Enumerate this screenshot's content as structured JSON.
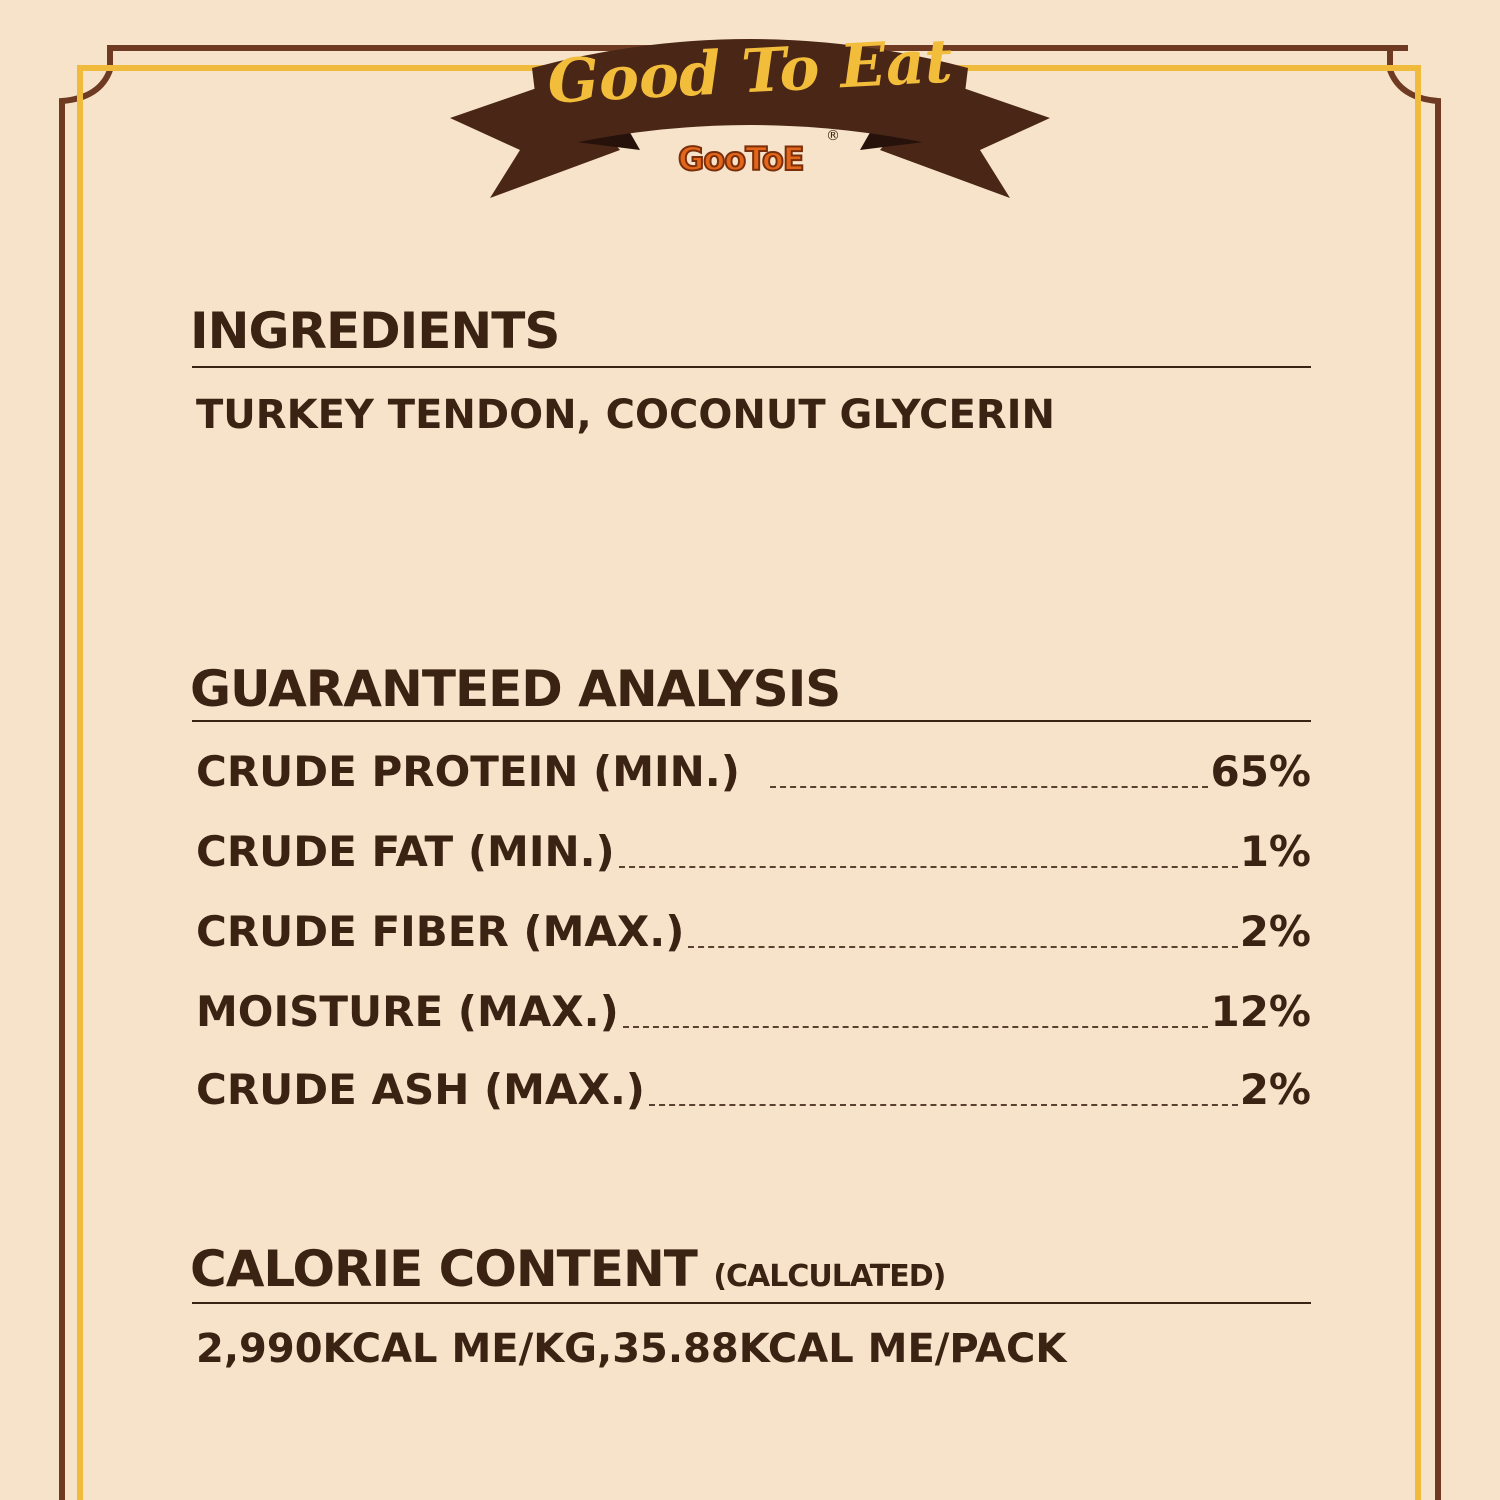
{
  "logo": {
    "title": "Good To Eat",
    "brand": "GooToE",
    "registered": "®"
  },
  "colors": {
    "background": "#f6e3c9",
    "brown": "#6e3b22",
    "gold": "#f0bb3c",
    "text": "#3b2314",
    "ribbon": "#4a2617"
  },
  "ingredients": {
    "heading": "INGREDIENTS",
    "text": "TURKEY TENDON, COCONUT GLYCERIN"
  },
  "analysis": {
    "heading": "GUARANTEED ANALYSIS",
    "rows": [
      {
        "label": "CRUDE PROTEIN (MIN.)",
        "value": "65%"
      },
      {
        "label": "CRUDE FAT (MIN.)",
        "value": "1%"
      },
      {
        "label": "CRUDE FIBER (MAX.)",
        "value": "2%"
      },
      {
        "label": "MOISTURE (MAX.)",
        "value": "12%"
      },
      {
        "label": "CRUDE ASH (MAX.)",
        "value": "2%"
      }
    ]
  },
  "calorie": {
    "heading": "CALORIE CONTENT",
    "note": "(CALCULATED)",
    "text": "2,990KCAL ME/KG,35.88KCAL ME/PACK"
  }
}
